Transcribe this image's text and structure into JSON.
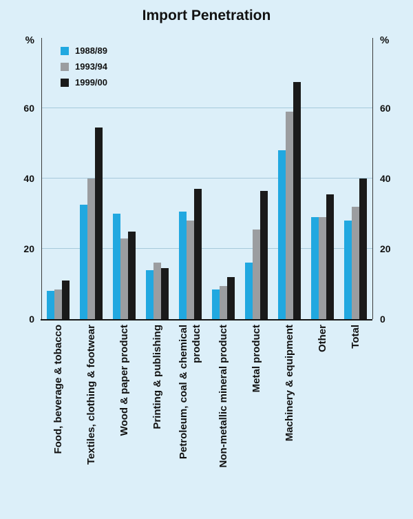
{
  "chart_data": {
    "type": "bar",
    "title": "Import Penetration",
    "y_unit": "%",
    "ylim": [
      0,
      80
    ],
    "yticks": [
      0,
      20,
      40,
      60
    ],
    "grid": true,
    "legend_position": "top-left",
    "categories": [
      "Food, beverage & tobacco",
      "Textiles, clothing & footwear",
      "Wood & paper product",
      "Printing & publishing",
      "Petroleum, coal & chemical product",
      "Non-metallic mineral product",
      "Metal product",
      "Machinery & equipment",
      "Other",
      "Total"
    ],
    "series": [
      {
        "name": "1988/89",
        "color": "#21A8E0",
        "values": [
          8,
          32.5,
          30,
          14,
          30.5,
          8.5,
          16,
          48,
          29,
          28
        ]
      },
      {
        "name": "1993/94",
        "color": "#9B9DA0",
        "values": [
          8.5,
          40,
          23,
          16,
          28,
          9.5,
          25.5,
          59,
          29,
          32
        ]
      },
      {
        "name": "1999/00",
        "color": "#1A1A1A",
        "values": [
          11,
          54.5,
          25,
          14.5,
          37,
          12,
          36.5,
          67.5,
          35.5,
          40
        ]
      }
    ]
  }
}
